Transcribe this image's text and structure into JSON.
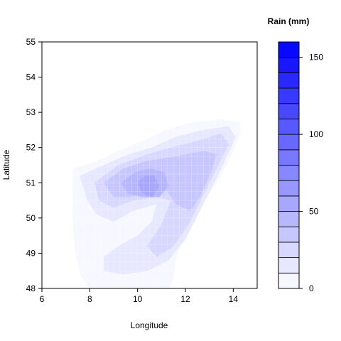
{
  "chart_data": {
    "type": "heatmap",
    "subtype": "filled-contour",
    "xlabel": "Longitude",
    "ylabel": "Latitude",
    "xlim": [
      6,
      15
    ],
    "ylim": [
      48,
      55
    ],
    "x_ticks": [
      "6",
      "8",
      "10",
      "12",
      "14"
    ],
    "y_ticks": [
      "48",
      "49",
      "50",
      "51",
      "52",
      "53",
      "54",
      "55"
    ],
    "legend": {
      "title": "Rain (mm)",
      "placement": "right",
      "levels": [
        0,
        10,
        20,
        30,
        40,
        50,
        60,
        70,
        80,
        90,
        100,
        110,
        120,
        130,
        140,
        150,
        160
      ],
      "tick_labels": [
        "0",
        "50",
        "100",
        "150"
      ],
      "color_low": "#ffffff",
      "color_high": "#0000ff"
    },
    "regions": [
      {
        "level": 10,
        "boundary": [
          [
            7.3,
            51.4
          ],
          [
            7.8,
            51.5
          ],
          [
            8.6,
            51.7
          ],
          [
            9.2,
            51.9
          ],
          [
            9.9,
            52.1
          ],
          [
            10.6,
            52.3
          ],
          [
            11.2,
            52.5
          ],
          [
            12.2,
            52.7
          ],
          [
            13.5,
            52.8
          ],
          [
            14.3,
            52.7
          ],
          [
            14.3,
            52.4
          ],
          [
            14.0,
            51.9
          ],
          [
            13.7,
            51.5
          ],
          [
            13.3,
            51.0
          ],
          [
            12.9,
            50.6
          ],
          [
            12.5,
            50.2
          ],
          [
            12.1,
            49.8
          ],
          [
            11.8,
            49.3
          ],
          [
            11.6,
            48.8
          ],
          [
            11.5,
            48.3
          ],
          [
            11.3,
            48.0
          ],
          [
            8.0,
            48.0
          ],
          [
            7.6,
            48.4
          ],
          [
            7.4,
            49.0
          ],
          [
            7.3,
            49.8
          ]
        ]
      },
      {
        "level": 20,
        "boundary": [
          [
            7.6,
            51.2
          ],
          [
            8.6,
            51.5
          ],
          [
            9.6,
            51.8
          ],
          [
            10.6,
            52.0
          ],
          [
            11.6,
            52.3
          ],
          [
            12.8,
            52.5
          ],
          [
            13.8,
            52.6
          ],
          [
            14.1,
            52.3
          ],
          [
            13.7,
            51.7
          ],
          [
            13.2,
            51.0
          ],
          [
            12.6,
            50.2
          ],
          [
            12.0,
            49.4
          ],
          [
            11.3,
            48.8
          ],
          [
            10.4,
            48.5
          ],
          [
            9.4,
            48.4
          ],
          [
            8.6,
            48.5
          ],
          [
            8.6,
            48.9
          ],
          [
            9.2,
            49.2
          ],
          [
            10.0,
            49.5
          ],
          [
            10.6,
            49.9
          ],
          [
            10.8,
            50.4
          ],
          [
            9.8,
            50.2
          ],
          [
            9.0,
            49.9
          ],
          [
            8.3,
            50.1
          ],
          [
            7.9,
            50.5
          ]
        ]
      },
      {
        "level": 30,
        "boundary": [
          [
            8.2,
            51.0
          ],
          [
            9.2,
            51.5
          ],
          [
            10.4,
            51.8
          ],
          [
            11.4,
            52.0
          ],
          [
            12.6,
            52.2
          ],
          [
            13.5,
            52.4
          ],
          [
            13.8,
            52.1
          ],
          [
            13.3,
            51.4
          ],
          [
            12.7,
            50.6
          ],
          [
            12.2,
            49.9
          ],
          [
            11.5,
            49.2
          ],
          [
            10.8,
            48.9
          ],
          [
            10.4,
            49.2
          ],
          [
            11.0,
            49.8
          ],
          [
            11.4,
            50.5
          ],
          [
            10.8,
            50.6
          ],
          [
            9.8,
            50.5
          ],
          [
            9.0,
            50.3
          ],
          [
            8.4,
            50.5
          ]
        ]
      },
      {
        "level": 40,
        "boundary": [
          [
            8.6,
            51.0
          ],
          [
            9.4,
            51.4
          ],
          [
            10.3,
            51.6
          ],
          [
            11.2,
            51.7
          ],
          [
            12.0,
            51.8
          ],
          [
            12.8,
            51.9
          ],
          [
            13.3,
            51.8
          ],
          [
            13.0,
            51.2
          ],
          [
            12.6,
            50.6
          ],
          [
            12.2,
            50.2
          ],
          [
            11.6,
            50.4
          ],
          [
            11.2,
            50.8
          ],
          [
            10.4,
            50.7
          ],
          [
            9.6,
            50.6
          ],
          [
            9.0,
            50.6
          ]
        ]
      },
      {
        "level": 50,
        "boundary": [
          [
            9.3,
            51.0
          ],
          [
            9.9,
            51.3
          ],
          [
            10.5,
            51.4
          ],
          [
            11.1,
            51.3
          ],
          [
            11.3,
            50.9
          ],
          [
            10.9,
            50.6
          ],
          [
            10.2,
            50.6
          ],
          [
            9.6,
            50.7
          ]
        ]
      },
      {
        "level": 60,
        "boundary": [
          [
            10.0,
            51.0
          ],
          [
            10.3,
            51.2
          ],
          [
            10.7,
            51.2
          ],
          [
            10.9,
            50.9
          ],
          [
            10.6,
            50.6
          ],
          [
            10.2,
            50.7
          ]
        ]
      }
    ]
  }
}
